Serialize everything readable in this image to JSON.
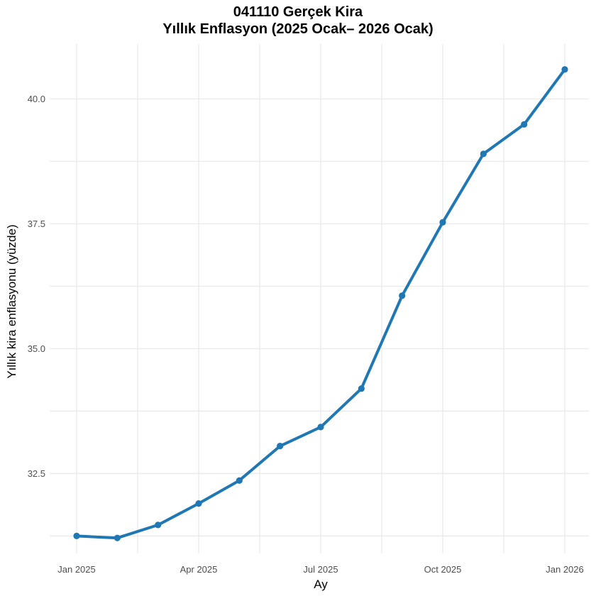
{
  "chart_data": {
    "type": "line",
    "title": "041110 Gerçek Kira",
    "subtitle": "Yıllık Enflasyon (2025 Ocak– 2026 Ocak)",
    "xlabel": "Ay",
    "ylabel": "Yıllık kira enflasyonu (yüzde)",
    "x": [
      "2025-01",
      "2025-02",
      "2025-03",
      "2025-04",
      "2025-05",
      "2025-06",
      "2025-07",
      "2025-08",
      "2025-09",
      "2025-10",
      "2025-11",
      "2025-12",
      "2026-01"
    ],
    "values": [
      31.25,
      31.21,
      31.47,
      31.9,
      32.36,
      33.05,
      33.43,
      34.2,
      36.06,
      37.53,
      38.9,
      39.49,
      40.59
    ],
    "x_ticks": [
      {
        "x": "2025-01",
        "label": "Jan 2025"
      },
      {
        "x": "2025-04",
        "label": "Apr 2025"
      },
      {
        "x": "2025-07",
        "label": "Jul 2025"
      },
      {
        "x": "2025-10",
        "label": "Oct 2025"
      },
      {
        "x": "2026-01",
        "label": "Jan 2026"
      }
    ],
    "y_ticks": [
      {
        "value": 32.5,
        "label": "32.5"
      },
      {
        "value": 35.0,
        "label": "35.0"
      },
      {
        "value": 37.5,
        "label": "37.5"
      },
      {
        "value": 40.0,
        "label": "40.0"
      }
    ],
    "ylim": [
      30.9,
      41.1
    ],
    "grid": true,
    "legend": "none",
    "colors": {
      "series": "#1f77b4",
      "grid": "#ebebeb",
      "tick_text": "#4d4d4d"
    }
  }
}
